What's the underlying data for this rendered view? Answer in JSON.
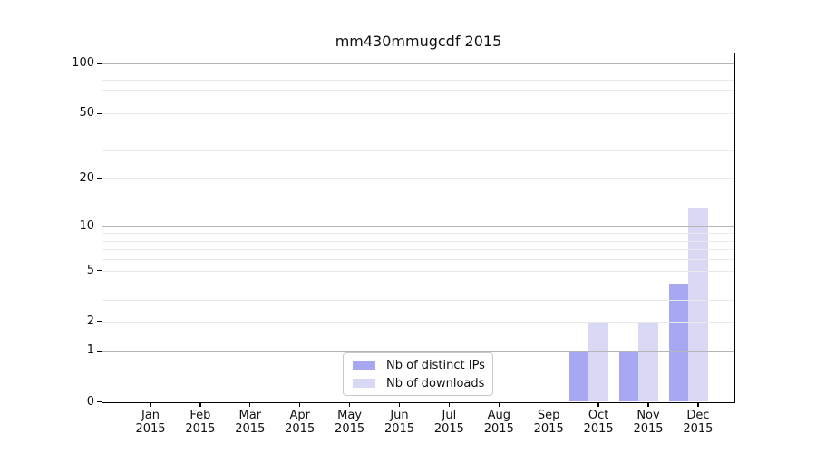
{
  "chart_data": {
    "type": "bar",
    "title": "mm430mmugcdf 2015",
    "categories": [
      "Jan 2015",
      "Feb 2015",
      "Mar 2015",
      "Apr 2015",
      "May 2015",
      "Jun 2015",
      "Jul 2015",
      "Aug 2015",
      "Sep 2015",
      "Oct 2015",
      "Nov 2015",
      "Dec 2015"
    ],
    "series": [
      {
        "name": "Nb of distinct IPs",
        "color": "#a8a8f2",
        "values": [
          0,
          0,
          0,
          0,
          0,
          0,
          0,
          0,
          0,
          1,
          1,
          4
        ]
      },
      {
        "name": "Nb of downloads",
        "color": "#d9d9f5",
        "values": [
          0,
          0,
          0,
          0,
          0,
          0,
          0,
          0,
          0,
          2,
          2,
          13
        ]
      }
    ],
    "yscale": "log1p",
    "ylim": [
      0,
      115
    ],
    "yticks": [
      0,
      1,
      2,
      5,
      10,
      20,
      50,
      100
    ],
    "major_gridlines": [
      1,
      10,
      100
    ],
    "minor_gridlines": [
      2,
      3,
      4,
      5,
      6,
      7,
      8,
      9,
      20,
      30,
      40,
      50,
      60,
      70,
      80,
      90
    ],
    "grid": true,
    "legend_position": "lower center",
    "xlabel": "",
    "ylabel": ""
  },
  "colors": {
    "bar_distinct_ips": "#a8a8f2",
    "bar_downloads": "#d9d9f5",
    "major_grid": "#b6b6b6",
    "minor_grid": "#e9e9e9",
    "axis": "#000000",
    "legend_border": "#c9c9c9",
    "background": "#ffffff"
  }
}
